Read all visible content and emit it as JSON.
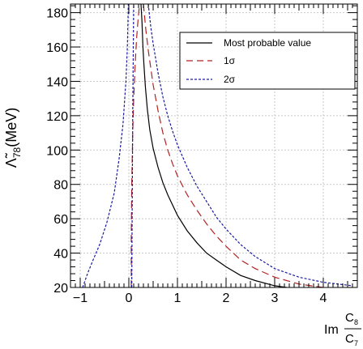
{
  "chart_data": {
    "type": "line",
    "xlabel_main": "Im",
    "xlabel_num": "C",
    "xlabel_num_sub": "8",
    "xlabel_den": "C",
    "xlabel_den_sub": "7",
    "ylabel_main": "Λ̃",
    "ylabel_sub": "78",
    "ylabel_unit": "(MeV)",
    "xlim": [
      -1.2,
      4.7
    ],
    "ylim": [
      20,
      185
    ],
    "xticks": [
      -1,
      0,
      1,
      2,
      3,
      4
    ],
    "yticks": [
      20,
      40,
      60,
      80,
      100,
      120,
      140,
      160,
      180
    ],
    "grid": true,
    "legend_position": "top-right",
    "series": [
      {
        "name": "Most probable value",
        "style": "solid",
        "color": "#000000",
        "x": [
          0.25,
          0.27,
          0.29,
          0.31,
          0.34,
          0.38,
          0.43,
          0.5,
          0.6,
          0.7,
          0.8,
          0.9,
          1.0,
          1.2,
          1.4,
          1.6,
          1.8,
          2.0,
          2.3,
          2.6,
          3.0,
          3.5,
          4.0,
          4.6
        ],
        "y": [
          185,
          175,
          160,
          150,
          137,
          124,
          112,
          101,
          90,
          81,
          74,
          68,
          62,
          53,
          46,
          40,
          36,
          32,
          27,
          24,
          21,
          19,
          18,
          17
        ]
      },
      {
        "name": "1σ",
        "style": "dashed",
        "color": "#b22222",
        "x": [
          0.3,
          0.35,
          0.4,
          0.5,
          0.6,
          0.7,
          0.8,
          0.9,
          1.0,
          1.2,
          1.4,
          1.6,
          1.8,
          2.0,
          2.3,
          2.6,
          3.0,
          3.5,
          4.0,
          4.6
        ],
        "y": [
          185,
          170,
          158,
          138,
          123,
          110,
          100,
          92,
          85,
          74,
          65,
          57,
          50,
          44,
          36,
          31,
          26,
          22,
          20,
          18
        ]
      },
      {
        "name": "1σ",
        "style": "dashed",
        "color": "#b22222",
        "x": [
          0.05,
          0.05,
          0.06,
          0.08,
          0.1,
          0.13,
          0.16,
          0.19,
          0.22
        ],
        "y": [
          20,
          50,
          80,
          110,
          130,
          150,
          165,
          176,
          185
        ]
      },
      {
        "name": "2σ",
        "style": "dotted",
        "color": "#1a1aa0",
        "x": [
          0.4,
          0.45,
          0.5,
          0.6,
          0.7,
          0.8,
          0.9,
          1.0,
          1.2,
          1.4,
          1.6,
          1.8,
          2.0,
          2.3,
          2.6,
          3.0,
          3.5,
          4.0,
          4.6
        ],
        "y": [
          185,
          172,
          162,
          145,
          131,
          120,
          111,
          103,
          90,
          79,
          70,
          61,
          54,
          45,
          38,
          31,
          26,
          23,
          21
        ]
      },
      {
        "name": "2σ",
        "style": "dotted",
        "color": "#1a1aa0",
        "x": [
          -0.95,
          -0.85,
          -0.75,
          -0.6,
          -0.45,
          -0.3,
          -0.2,
          -0.12,
          -0.06,
          -0.03,
          -0.01
        ],
        "y": [
          20,
          28,
          35,
          45,
          58,
          75,
          95,
          115,
          140,
          160,
          185
        ]
      },
      {
        "name": "2σ",
        "style": "dotted",
        "color": "#1a1aa0",
        "x": [
          0.06,
          0.08,
          0.1
        ],
        "y": [
          20,
          120,
          185
        ]
      }
    ],
    "legend": [
      {
        "label": "Most probable value",
        "style": "solid",
        "color": "#000000"
      },
      {
        "label": "1σ",
        "style": "dashed",
        "color": "#b22222"
      },
      {
        "label": "2σ",
        "style": "dotted",
        "color": "#1a1aa0"
      }
    ]
  }
}
